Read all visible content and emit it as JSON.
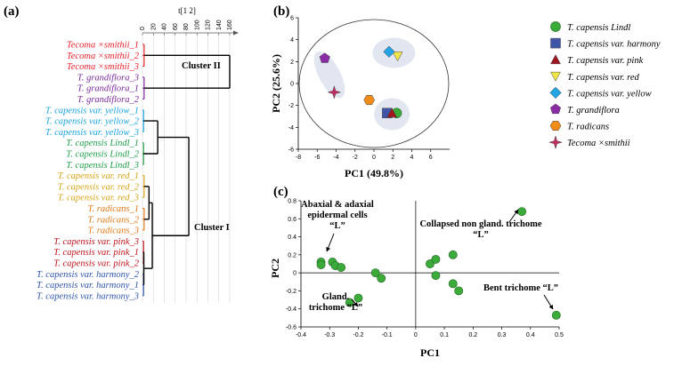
{
  "panels": {
    "a": "(a)",
    "b": "(b)",
    "c": "(c)"
  },
  "chart_data": [
    {
      "panel": "a",
      "type": "dendrogram",
      "xlabel": "t[1 2]",
      "xticks": [
        0,
        20,
        40,
        60,
        80,
        100,
        120,
        140,
        160
      ],
      "leaves": [
        {
          "label": "Tecoma ×smithii_1",
          "color": "#e8212b"
        },
        {
          "label": "Tecoma ×smithii_2",
          "color": "#e8212b"
        },
        {
          "label": "Tecoma ×smithii_3",
          "color": "#e8212b"
        },
        {
          "label": "T. grandiflora_3",
          "color": "#7b2a9a"
        },
        {
          "label": "T. grandiflora_1",
          "color": "#7b2a9a"
        },
        {
          "label": "T. grandiflora_2",
          "color": "#7b2a9a"
        },
        {
          "label": "T. capensis var. yellow_1",
          "color": "#1aa3de"
        },
        {
          "label": "T. capensis var. yellow_2",
          "color": "#1aa3de"
        },
        {
          "label": "T. capensis var. yellow_3",
          "color": "#1aa3de"
        },
        {
          "label": "T. capensis Lindl_1",
          "color": "#1e9e4a"
        },
        {
          "label": "T. capensis Lindl_2",
          "color": "#1e9e4a"
        },
        {
          "label": "T. capensis Lindl_3",
          "color": "#1e9e4a"
        },
        {
          "label": "T. capensis var. red_1",
          "color": "#d6a418"
        },
        {
          "label": "T. capensis var. red_2",
          "color": "#d6a418"
        },
        {
          "label": "T. capensis var. red_3",
          "color": "#d6a418"
        },
        {
          "label": "T. radicans_1",
          "color": "#e07a18"
        },
        {
          "label": "T. radicans_2",
          "color": "#e07a18"
        },
        {
          "label": "T. radicans_3",
          "color": "#e07a18"
        },
        {
          "label": "T. capensis var. pink_3",
          "color": "#c0131c"
        },
        {
          "label": "T. capensis var. pink_1",
          "color": "#c0131c"
        },
        {
          "label": "T. capensis var. pink_2",
          "color": "#c0131c"
        },
        {
          "label": "T. capensis var. harmony_2",
          "color": "#2f56a8"
        },
        {
          "label": "T. capensis var. harmony_1",
          "color": "#2f56a8"
        },
        {
          "label": "T. capensis var. harmony_3",
          "color": "#2f56a8"
        }
      ],
      "clusters": [
        {
          "label": "Cluster II",
          "height": 160
        },
        {
          "label": "Cluster I",
          "height": 85
        }
      ],
      "merges": [
        {
          "leaves": [
            0,
            2
          ],
          "height": 3,
          "color": "#e8212b"
        },
        {
          "leaves": [
            3,
            5
          ],
          "height": 3,
          "color": "#7b2a9a"
        },
        {
          "leaves": [
            6,
            8
          ],
          "height": 2,
          "color": "#1aa3de"
        },
        {
          "leaves": [
            9,
            11
          ],
          "height": 2,
          "color": "#1e9e4a"
        },
        {
          "leaves": [
            12,
            14
          ],
          "height": 3,
          "color": "#d6a418"
        },
        {
          "leaves": [
            15,
            17
          ],
          "height": 3,
          "color": "#e07a18"
        },
        {
          "leaves": [
            18,
            20
          ],
          "height": 2,
          "color": "#c0131c"
        },
        {
          "leaves": [
            21,
            23
          ],
          "height": 2,
          "color": "#2f56a8"
        }
      ]
    },
    {
      "panel": "b",
      "type": "scatter",
      "xlabel": "PC1 (49.8%)",
      "ylabel": "PC2 (25.6%)",
      "xlim": [
        -8,
        8
      ],
      "ylim": [
        -6,
        6
      ],
      "xticks": [
        -8,
        -6,
        -4,
        -2,
        0,
        2,
        4,
        6
      ],
      "yticks": [
        -6,
        -4,
        -2,
        0,
        2,
        4,
        6
      ],
      "series": [
        {
          "name": "T. capensis Lindl",
          "marker": "circle",
          "color": "#3bab3a",
          "points": [
            [
              2.4,
              -2.7
            ]
          ]
        },
        {
          "name": "T. capensis var. harmony",
          "marker": "square",
          "color": "#3f55a8",
          "points": [
            [
              1.4,
              -2.7
            ]
          ]
        },
        {
          "name": "T. capensis var. pink",
          "marker": "triangle",
          "color": "#a0171f",
          "points": [
            [
              1.9,
              -2.7
            ]
          ]
        },
        {
          "name": "T. capensis var. red",
          "marker": "triangle-down",
          "color": "#f0e64a",
          "points": [
            [
              2.5,
              2.5
            ]
          ]
        },
        {
          "name": "T. capensis var. yellow",
          "marker": "diamond",
          "color": "#23a3e6",
          "points": [
            [
              1.6,
              2.9
            ]
          ]
        },
        {
          "name": "T. grandiflora",
          "marker": "pentagon",
          "color": "#8c2ba6",
          "points": [
            [
              -5.2,
              2.3
            ]
          ]
        },
        {
          "name": "T. radicans",
          "marker": "hexagon",
          "color": "#f08c1a",
          "points": [
            [
              -0.5,
              -1.5
            ]
          ]
        },
        {
          "name": "Tecoma ×smithii",
          "marker": "star",
          "color": "#c62a63",
          "points": [
            [
              -4.2,
              -0.8
            ]
          ]
        }
      ],
      "ellipse_regions": [
        "T. grandiflora + Tecoma ×smithii",
        "T. capensis var. yellow + red",
        "T. capensis var. harmony + pink + Lindl"
      ]
    },
    {
      "panel": "c",
      "type": "scatter",
      "xlabel": "PC1",
      "ylabel": "PC2",
      "xlim": [
        -0.4,
        0.5
      ],
      "ylim": [
        -0.6,
        0.8
      ],
      "xticks": [
        -0.4,
        -0.3,
        -0.2,
        -0.1,
        0,
        0.1,
        0.2,
        0.3,
        0.4,
        0.5
      ],
      "yticks": [
        -0.6,
        -0.4,
        -0.2,
        0,
        0.2,
        0.4,
        0.6,
        0.8
      ],
      "color": "#3bab3a",
      "points": [
        [
          -0.33,
          0.12
        ],
        [
          -0.33,
          0.09
        ],
        [
          -0.29,
          0.12
        ],
        [
          -0.28,
          0.08
        ],
        [
          -0.26,
          0.06
        ],
        [
          -0.14,
          0.0
        ],
        [
          -0.12,
          -0.06
        ],
        [
          -0.2,
          -0.28
        ],
        [
          -0.23,
          -0.33
        ],
        [
          0.05,
          0.1
        ],
        [
          0.07,
          0.15
        ],
        [
          0.07,
          -0.03
        ],
        [
          0.13,
          0.2
        ],
        [
          0.13,
          -0.12
        ],
        [
          0.15,
          -0.2
        ],
        [
          0.37,
          0.68
        ],
        [
          0.49,
          -0.47
        ]
      ],
      "annotations": [
        {
          "lines": [
            "Abaxial & adaxial",
            "epidermal cells",
            "“L”"
          ]
        },
        {
          "lines": [
            "Collapsed non gland. trichome",
            "“L”"
          ]
        },
        {
          "lines": [
            "Gland.",
            "trichome “L”"
          ]
        },
        {
          "lines": [
            "Bent trichome “L”"
          ]
        }
      ]
    }
  ]
}
